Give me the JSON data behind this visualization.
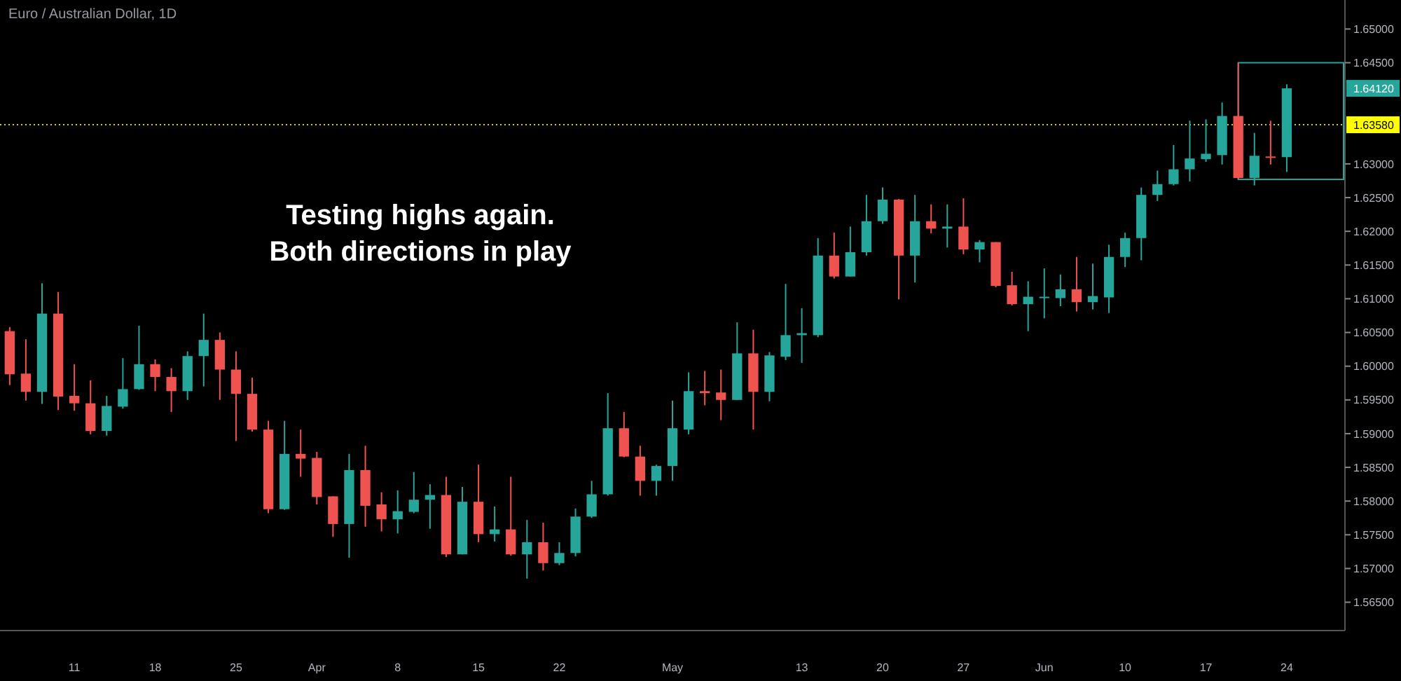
{
  "chart_data": {
    "type": "candlestick",
    "title": "Euro / Australian Dollar, 1D",
    "annotations": [
      "Testing highs again.\nBoth directions in play",
      "1.64120"
    ],
    "categories": [
      null,
      null,
      null,
      null,
      "11",
      null,
      null,
      null,
      null,
      "18",
      null,
      null,
      null,
      null,
      "25",
      null,
      null,
      null,
      null,
      "Apr",
      null,
      null,
      null,
      null,
      "8",
      null,
      null,
      null,
      null,
      "15",
      null,
      null,
      null,
      null,
      "22",
      null,
      null,
      null,
      null,
      null,
      null,
      "May",
      null,
      null,
      null,
      null,
      null,
      null,
      null,
      "13",
      null,
      null,
      null,
      null,
      "20",
      null,
      null,
      null,
      null,
      "27",
      null,
      null,
      null,
      null,
      "Jun",
      null,
      null,
      null,
      null,
      "10",
      null,
      null,
      null,
      null,
      "17",
      null,
      null,
      null,
      null,
      "24"
    ],
    "ohlc": [
      [
        1.6052,
        1.6058,
        1.5972,
        1.5988
      ],
      [
        1.5989,
        1.604,
        1.5949,
        1.5962
      ],
      [
        1.5962,
        1.6123,
        1.5944,
        1.6078
      ],
      [
        1.6078,
        1.611,
        1.5935,
        1.5955
      ],
      [
        1.5956,
        1.6003,
        1.5934,
        1.5945
      ],
      [
        1.5945,
        1.5979,
        1.5899,
        1.5904
      ],
      [
        1.5904,
        1.5956,
        1.5897,
        1.5941
      ],
      [
        1.594,
        1.6012,
        1.5937,
        1.5966
      ],
      [
        1.5966,
        1.606,
        1.5965,
        1.6003
      ],
      [
        1.6003,
        1.601,
        1.5963,
        1.5984
      ],
      [
        1.5984,
        1.5997,
        1.5932,
        1.5963
      ],
      [
        1.5963,
        1.6022,
        1.595,
        1.6015
      ],
      [
        1.6015,
        1.6078,
        1.597,
        1.6039
      ],
      [
        1.6039,
        1.605,
        1.595,
        1.5995
      ],
      [
        1.5995,
        1.6022,
        1.5889,
        1.5959
      ],
      [
        1.5959,
        1.5983,
        1.5903,
        1.5906
      ],
      [
        1.5906,
        1.5919,
        1.5782,
        1.5788
      ],
      [
        1.5788,
        1.5919,
        1.5787,
        1.587
      ],
      [
        1.587,
        1.5906,
        1.5836,
        1.5863
      ],
      [
        1.5864,
        1.5873,
        1.5795,
        1.5806
      ],
      [
        1.5807,
        1.5807,
        1.5747,
        1.5766
      ],
      [
        1.5766,
        1.587,
        1.5716,
        1.5846
      ],
      [
        1.5846,
        1.5882,
        1.5762,
        1.5793
      ],
      [
        1.5795,
        1.5813,
        1.5755,
        1.5773
      ],
      [
        1.5773,
        1.5816,
        1.5752,
        1.5785
      ],
      [
        1.5784,
        1.5843,
        1.5782,
        1.5802
      ],
      [
        1.5802,
        1.5825,
        1.5759,
        1.5809
      ],
      [
        1.5809,
        1.5836,
        1.5717,
        1.5721
      ],
      [
        1.5721,
        1.5821,
        1.5721,
        1.5799
      ],
      [
        1.5799,
        1.5854,
        1.5739,
        1.5751
      ],
      [
        1.5751,
        1.5792,
        1.574,
        1.5758
      ],
      [
        1.5758,
        1.5836,
        1.5719,
        1.5721
      ],
      [
        1.5721,
        1.5772,
        1.5685,
        1.5739
      ],
      [
        1.5739,
        1.5768,
        1.5697,
        1.5708
      ],
      [
        1.5708,
        1.5739,
        1.5705,
        1.5723
      ],
      [
        1.5723,
        1.5789,
        1.5718,
        1.5777
      ],
      [
        1.5777,
        1.583,
        1.5775,
        1.581
      ],
      [
        1.581,
        1.596,
        1.5808,
        1.5908
      ],
      [
        1.5908,
        1.5932,
        1.5865,
        1.5866
      ],
      [
        1.5866,
        1.5882,
        1.5808,
        1.583
      ],
      [
        1.583,
        1.5854,
        1.5808,
        1.5852
      ],
      [
        1.5852,
        1.5949,
        1.583,
        1.5908
      ],
      [
        1.5906,
        1.5991,
        1.5899,
        1.5963
      ],
      [
        1.5963,
        1.5993,
        1.5942,
        1.596
      ],
      [
        1.5961,
        1.5995,
        1.592,
        1.595
      ],
      [
        1.595,
        1.6065,
        1.595,
        1.6019
      ],
      [
        1.6019,
        1.6054,
        1.5906,
        1.5962
      ],
      [
        1.5962,
        1.6021,
        1.5948,
        1.6016
      ],
      [
        1.6014,
        1.6122,
        1.6009,
        1.6046
      ],
      [
        1.6046,
        1.6086,
        1.6005,
        1.6049
      ],
      [
        1.6046,
        1.619,
        1.6043,
        1.6164
      ],
      [
        1.6164,
        1.6198,
        1.613,
        1.6133
      ],
      [
        1.6133,
        1.6207,
        1.6133,
        1.6169
      ],
      [
        1.6169,
        1.6254,
        1.6164,
        1.6215
      ],
      [
        1.6215,
        1.6265,
        1.6211,
        1.6247
      ],
      [
        1.6247,
        1.6248,
        1.6099,
        1.6164
      ],
      [
        1.6164,
        1.6254,
        1.6124,
        1.6215
      ],
      [
        1.6215,
        1.624,
        1.6197,
        1.6204
      ],
      [
        1.6204,
        1.624,
        1.6176,
        1.6207
      ],
      [
        1.6207,
        1.6249,
        1.6166,
        1.6173
      ],
      [
        1.6173,
        1.6187,
        1.6154,
        1.6184
      ],
      [
        1.6184,
        1.6184,
        1.6117,
        1.6119
      ],
      [
        1.612,
        1.614,
        1.609,
        1.6092
      ],
      [
        1.6092,
        1.6126,
        1.6052,
        1.6103
      ],
      [
        1.6101,
        1.6145,
        1.6071,
        1.6103
      ],
      [
        1.6101,
        1.6136,
        1.6089,
        1.6114
      ],
      [
        1.6114,
        1.6162,
        1.6081,
        1.6095
      ],
      [
        1.6095,
        1.6152,
        1.6084,
        1.6104
      ],
      [
        1.6102,
        1.618,
        1.6079,
        1.6162
      ],
      [
        1.6162,
        1.6198,
        1.6147,
        1.619
      ],
      [
        1.619,
        1.6265,
        1.6157,
        1.6254
      ],
      [
        1.6254,
        1.629,
        1.6245,
        1.627
      ],
      [
        1.627,
        1.6328,
        1.6268,
        1.6292
      ],
      [
        1.6292,
        1.6364,
        1.6274,
        1.6308
      ],
      [
        1.6307,
        1.6366,
        1.6303,
        1.6315
      ],
      [
        1.6313,
        1.6391,
        1.6299,
        1.6371
      ],
      [
        1.6371,
        1.645,
        1.6277,
        1.6279
      ],
      [
        1.6279,
        1.6346,
        1.6268,
        1.6312
      ],
      [
        1.6311,
        1.6364,
        1.6299,
        1.6309
      ],
      [
        1.631,
        1.6418,
        1.6288,
        1.6412
      ]
    ],
    "colors": [
      "#ef5350",
      "#ef5350",
      "#26a69a",
      "#ef5350",
      "#ef5350",
      "#ef5350",
      "#26a69a",
      "#26a69a",
      "#26a69a",
      "#ef5350",
      "#ef5350",
      "#26a69a",
      "#26a69a",
      "#ef5350",
      "#ef5350",
      "#ef5350",
      "#ef5350",
      "#26a69a",
      "#ef5350",
      "#ef5350",
      "#ef5350",
      "#26a69a",
      "#ef5350",
      "#ef5350",
      "#26a69a",
      "#26a69a",
      "#26a69a",
      "#ef5350",
      "#26a69a",
      "#ef5350",
      "#26a69a",
      "#ef5350",
      "#26a69a",
      "#ef5350",
      "#26a69a",
      "#26a69a",
      "#26a69a",
      "#26a69a",
      "#ef5350",
      "#ef5350",
      "#26a69a",
      "#26a69a",
      "#26a69a",
      "#ef5350",
      "#ef5350",
      "#26a69a",
      "#ef5350",
      "#26a69a",
      "#26a69a",
      "#26a69a",
      "#26a69a",
      "#ef5350",
      "#26a69a",
      "#26a69a",
      "#26a69a",
      "#ef5350",
      "#26a69a",
      "#ef5350",
      "#26a69a",
      "#ef5350",
      "#26a69a",
      "#ef5350",
      "#ef5350",
      "#26a69a",
      "#26a69a",
      "#26a69a",
      "#ef5350",
      "#26a69a",
      "#26a69a",
      "#26a69a",
      "#26a69a",
      "#26a69a",
      "#26a69a",
      "#26a69a",
      "#26a69a",
      "#26a69a",
      "#ef5350",
      "#26a69a",
      "#ef5350",
      "#26a69a"
    ],
    "ylim": [
      1.5608,
      1.6543
    ],
    "yticks": [
      {
        "value": 1.565,
        "label": "1.56500"
      },
      {
        "value": 1.57,
        "label": "1.57000"
      },
      {
        "value": 1.575,
        "label": "1.57500"
      },
      {
        "value": 1.58,
        "label": "1.58000"
      },
      {
        "value": 1.585,
        "label": "1.58500"
      },
      {
        "value": 1.59,
        "label": "1.59000"
      },
      {
        "value": 1.595,
        "label": "1.59500"
      },
      {
        "value": 1.6,
        "label": "1.60000"
      },
      {
        "value": 1.605,
        "label": "1.60500"
      },
      {
        "value": 1.61,
        "label": "1.61000"
      },
      {
        "value": 1.615,
        "label": "1.61500"
      },
      {
        "value": 1.62,
        "label": "1.62000"
      },
      {
        "value": 1.625,
        "label": "1.62500"
      },
      {
        "value": 1.63,
        "label": "1.63000"
      },
      {
        "value": 1.645,
        "label": "1.64500"
      },
      {
        "value": 1.65,
        "label": "1.65000"
      }
    ],
    "ref_lines": [
      {
        "axis": "y",
        "value": 1.6358,
        "label": "1.63580",
        "color": "#d4d400",
        "line_style": "dotted"
      }
    ]
  }
}
